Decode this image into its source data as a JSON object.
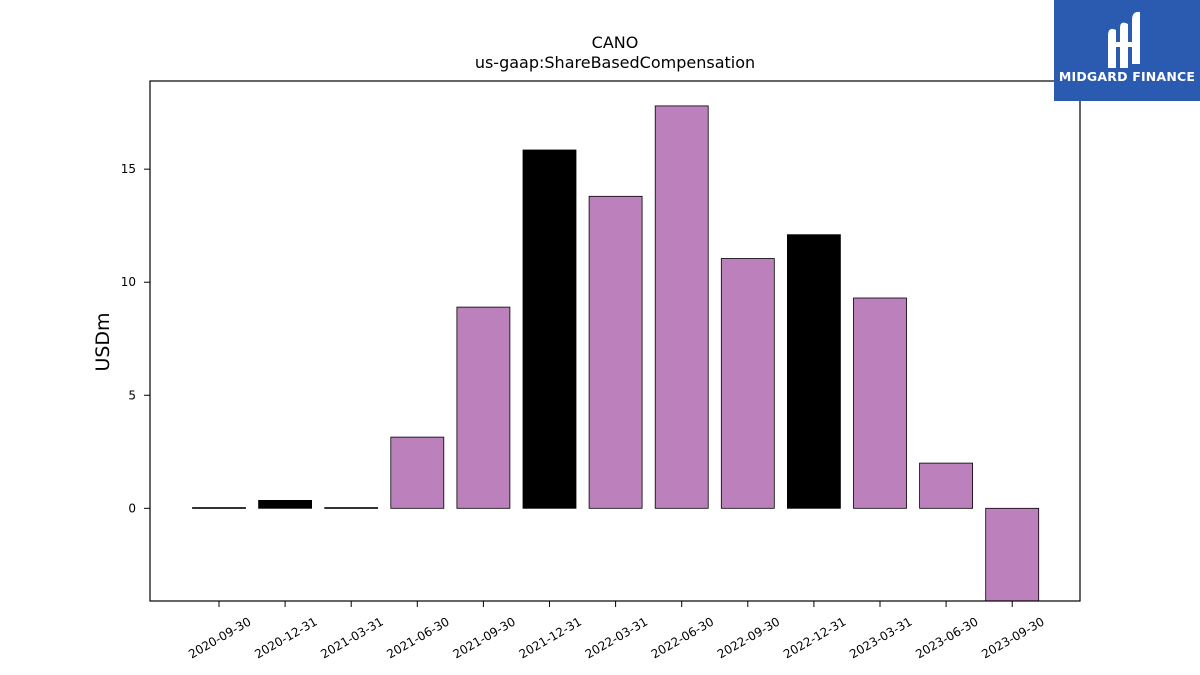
{
  "logo": {
    "text": "MIDGARD FINANCE",
    "background": "#2a5bb0"
  },
  "chart_data": {
    "type": "bar",
    "title": "CANO",
    "subtitle": "us-gaap:ShareBasedCompensation",
    "ylabel": "USDm",
    "xlabel": "",
    "ylim": [
      -4.1,
      18.9
    ],
    "yticks": [
      0,
      5,
      10,
      15
    ],
    "categories": [
      "2020-09-30",
      "2020-12-31",
      "2021-03-31",
      "2021-06-30",
      "2021-09-30",
      "2021-12-31",
      "2022-03-31",
      "2022-06-30",
      "2022-09-30",
      "2022-12-31",
      "2023-03-31",
      "2023-06-30",
      "2023-09-30"
    ],
    "values": [
      0.03,
      0.35,
      0.03,
      3.15,
      8.9,
      15.85,
      13.8,
      17.8,
      11.05,
      12.1,
      9.3,
      2.0,
      -4.1
    ],
    "bar_colors": [
      "#000000",
      "#000000",
      "#000000",
      "#bc80bd",
      "#bc80bd",
      "#000000",
      "#bc80bd",
      "#bc80bd",
      "#bc80bd",
      "#000000",
      "#bc80bd",
      "#bc80bd",
      "#bc80bd"
    ],
    "grid": false,
    "legend": "none"
  }
}
